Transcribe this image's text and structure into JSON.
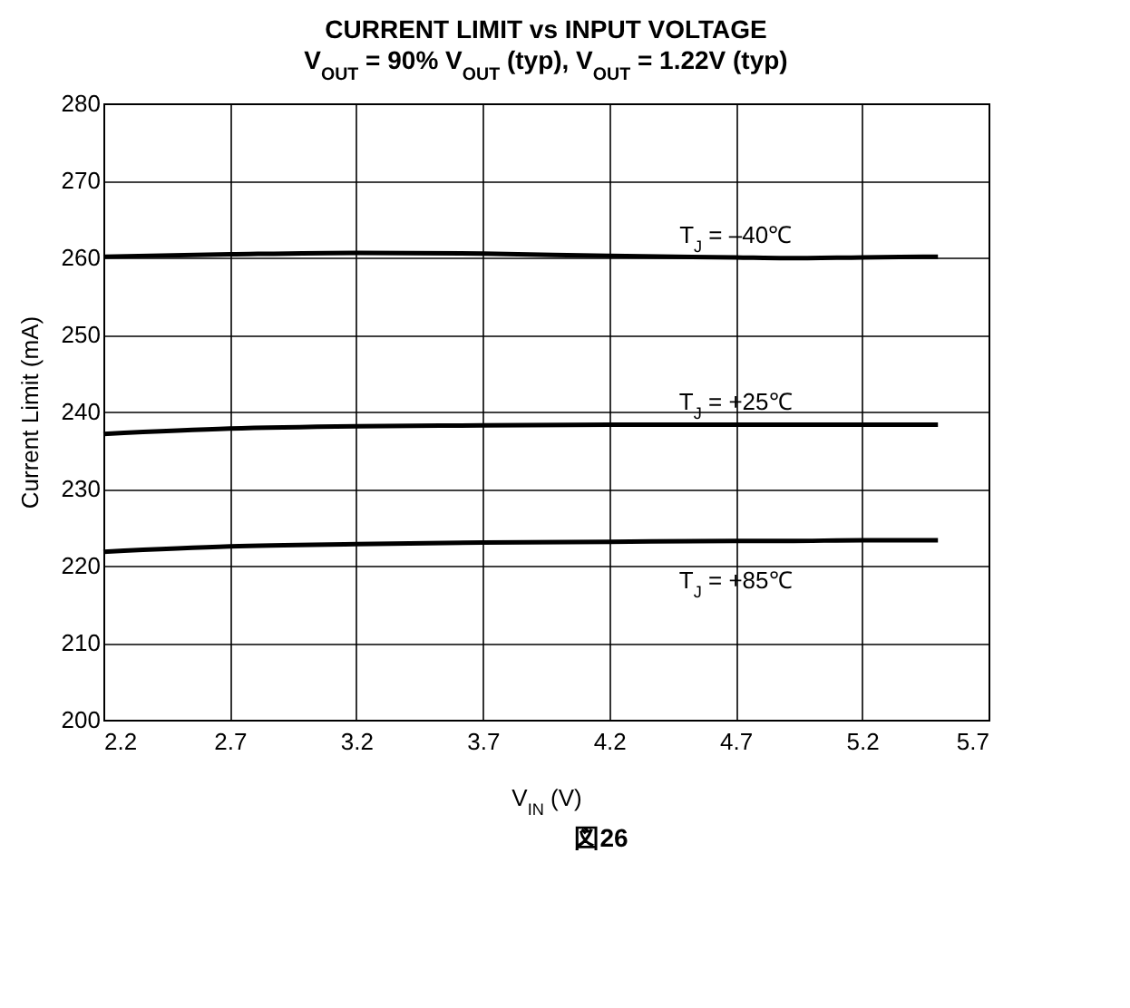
{
  "chart_data": {
    "type": "line",
    "title": "CURRENT LIMIT vs INPUT VOLTAGE",
    "subtitle": "V$_{OUT}$ = 90% V$_{OUT}$ (typ), V$_{OUT}$ = 1.22V (typ)",
    "xlabel": "V$_{IN}$ (V)",
    "ylabel": "Current Limit (mA)",
    "annotations": [
      "図26"
    ],
    "x": [
      2.2,
      2.7,
      3.2,
      3.7,
      4.2,
      4.7,
      4.9,
      5.2,
      5.5
    ],
    "series": [
      {
        "name": "T$_{J}$ = –40℃",
        "color": "#000000",
        "values": [
          260.1,
          260.4,
          260.6,
          260.5,
          260.2,
          260.0,
          259.9,
          260.0,
          260.1
        ]
      },
      {
        "name": "T$_{J}$ = +25℃",
        "color": "#000000",
        "values": [
          237.1,
          237.8,
          238.1,
          238.2,
          238.3,
          238.3,
          238.3,
          238.3,
          238.3
        ]
      },
      {
        "name": "T$_{J}$ = +85℃",
        "color": "#000000",
        "values": [
          221.8,
          222.5,
          222.8,
          223.0,
          223.1,
          223.2,
          223.2,
          223.3,
          223.3
        ]
      }
    ],
    "xlim": [
      2.2,
      5.7
    ],
    "xticks": [
      2.2,
      2.7,
      3.2,
      3.7,
      4.2,
      4.7,
      5.2,
      5.7
    ],
    "ylim": [
      200,
      280
    ],
    "yticks": [
      200,
      210,
      220,
      230,
      240,
      250,
      260,
      270,
      280
    ],
    "grid": true,
    "line_style": "solid",
    "marker": "none"
  }
}
